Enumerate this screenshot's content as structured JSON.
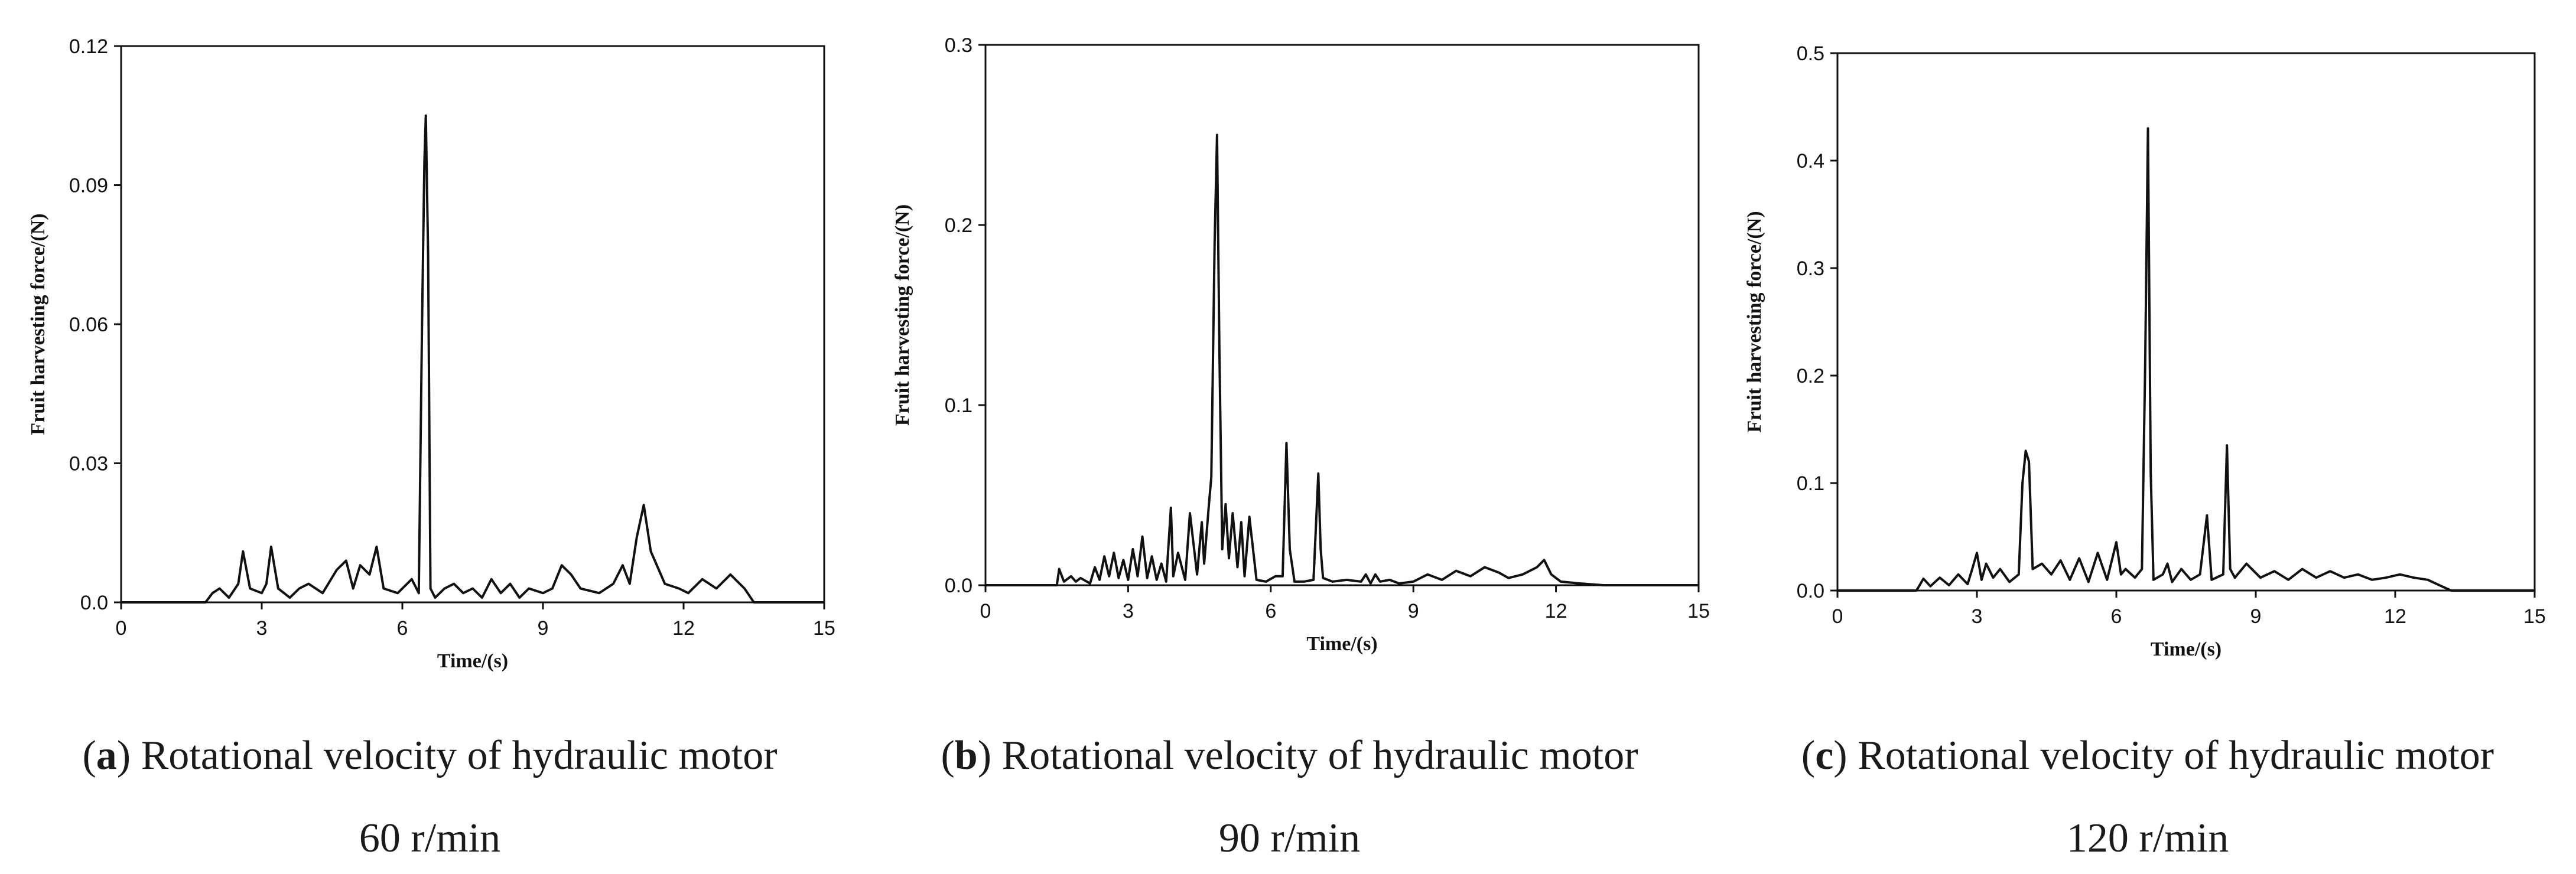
{
  "chart_data": [
    {
      "type": "line",
      "xlabel": "Time/(s)",
      "ylabel": "Fruit harvesting force/(N)",
      "xlim": [
        0,
        15
      ],
      "ylim": [
        0,
        0.12
      ],
      "xticks": [
        "0",
        "3",
        "6",
        "9",
        "12",
        "15"
      ],
      "yticks": [
        "0.0",
        "0.03",
        "0.06",
        "0.09",
        "0.12"
      ],
      "caption_letter": "a",
      "caption_text": " Rotational velocity of hydraulic motor",
      "caption_line2": "60 r/min",
      "series": [
        {
          "x": [
            0,
            1.8,
            1.95,
            2.1,
            2.3,
            2.5,
            2.6,
            2.75,
            3.0,
            3.1,
            3.2,
            3.35,
            3.6,
            3.8,
            4.0,
            4.3,
            4.6,
            4.8,
            4.95,
            5.1,
            5.3,
            5.45,
            5.6,
            5.9,
            6.2,
            6.35,
            6.42,
            6.47,
            6.5,
            6.55,
            6.6,
            6.7,
            6.9,
            7.1,
            7.3,
            7.5,
            7.7,
            7.9,
            8.1,
            8.3,
            8.5,
            8.7,
            9.0,
            9.2,
            9.4,
            9.6,
            9.8,
            10.2,
            10.5,
            10.7,
            10.85,
            11.0,
            11.15,
            11.3,
            11.6,
            11.9,
            12.1,
            12.4,
            12.7,
            13.0,
            13.3,
            13.5,
            14.0,
            15.0
          ],
          "y": [
            0,
            0,
            0.002,
            0.003,
            0.001,
            0.004,
            0.011,
            0.003,
            0.002,
            0.004,
            0.012,
            0.003,
            0.001,
            0.003,
            0.004,
            0.002,
            0.007,
            0.009,
            0.003,
            0.008,
            0.006,
            0.012,
            0.003,
            0.002,
            0.005,
            0.002,
            0.06,
            0.095,
            0.105,
            0.075,
            0.003,
            0.001,
            0.003,
            0.004,
            0.002,
            0.003,
            0.001,
            0.005,
            0.002,
            0.004,
            0.001,
            0.003,
            0.002,
            0.003,
            0.008,
            0.006,
            0.003,
            0.002,
            0.004,
            0.008,
            0.004,
            0.014,
            0.021,
            0.011,
            0.004,
            0.003,
            0.002,
            0.005,
            0.003,
            0.006,
            0.003,
            0,
            0,
            0
          ]
        }
      ]
    },
    {
      "type": "line",
      "xlabel": "Time/(s)",
      "ylabel": "Fruit harvesting force/(N)",
      "xlim": [
        0,
        15
      ],
      "ylim": [
        0,
        0.3
      ],
      "xticks": [
        "0",
        "3",
        "6",
        "9",
        "12",
        "15"
      ],
      "yticks": [
        "0.0",
        "0.1",
        "0.2",
        "0.3"
      ],
      "caption_letter": "b",
      "caption_text": " Rotational velocity of hydraulic motor",
      "caption_line2": "90 r/min",
      "series": [
        {
          "x": [
            0,
            1.5,
            1.55,
            1.65,
            1.8,
            1.9,
            2.0,
            2.2,
            2.3,
            2.4,
            2.5,
            2.6,
            2.7,
            2.8,
            2.9,
            3.0,
            3.1,
            3.2,
            3.3,
            3.4,
            3.5,
            3.6,
            3.7,
            3.8,
            3.9,
            3.95,
            4.05,
            4.2,
            4.3,
            4.45,
            4.55,
            4.6,
            4.7,
            4.75,
            4.82,
            4.87,
            4.92,
            4.98,
            5.05,
            5.12,
            5.2,
            5.3,
            5.38,
            5.45,
            5.55,
            5.7,
            5.9,
            6.1,
            6.25,
            6.33,
            6.4,
            6.5,
            6.7,
            6.9,
            7.0,
            7.05,
            7.1,
            7.3,
            7.6,
            7.9,
            8.0,
            8.1,
            8.2,
            8.3,
            8.5,
            8.7,
            9.0,
            9.3,
            9.6,
            9.9,
            10.2,
            10.5,
            10.8,
            11.0,
            11.3,
            11.6,
            11.75,
            11.9,
            12.1,
            12.5,
            13.0,
            15.0
          ],
          "y": [
            0,
            0,
            0.009,
            0.002,
            0.005,
            0.002,
            0.004,
            0.001,
            0.01,
            0.003,
            0.016,
            0.005,
            0.018,
            0.004,
            0.014,
            0.003,
            0.02,
            0.005,
            0.027,
            0.004,
            0.016,
            0.003,
            0.012,
            0.002,
            0.043,
            0.005,
            0.018,
            0.003,
            0.04,
            0.006,
            0.035,
            0.012,
            0.045,
            0.06,
            0.19,
            0.25,
            0.13,
            0.02,
            0.045,
            0.015,
            0.04,
            0.01,
            0.035,
            0.005,
            0.038,
            0.003,
            0.002,
            0.005,
            0.005,
            0.079,
            0.02,
            0.002,
            0.002,
            0.003,
            0.062,
            0.02,
            0.004,
            0.002,
            0.003,
            0.002,
            0.006,
            0.001,
            0.006,
            0.002,
            0.003,
            0.001,
            0.002,
            0.006,
            0.003,
            0.008,
            0.005,
            0.01,
            0.007,
            0.004,
            0.006,
            0.01,
            0.014,
            0.006,
            0.002,
            0.001,
            0,
            0
          ]
        }
      ]
    },
    {
      "type": "line",
      "xlabel": "Time/(s)",
      "ylabel": "Fruit harvesting force/(N)",
      "xlim": [
        0,
        15
      ],
      "ylim": [
        0,
        0.5
      ],
      "xticks": [
        "0",
        "3",
        "6",
        "9",
        "12",
        "15"
      ],
      "yticks": [
        "0.0",
        "0.1",
        "0.2",
        "0.3",
        "0.4",
        "0.5"
      ],
      "caption_letter": "c",
      "caption_text": " Rotational velocity of hydraulic motor",
      "caption_line2": "120 r/min",
      "series": [
        {
          "x": [
            0,
            1.7,
            1.85,
            2.0,
            2.2,
            2.4,
            2.6,
            2.8,
            2.9,
            3.0,
            3.1,
            3.2,
            3.35,
            3.5,
            3.7,
            3.9,
            3.98,
            4.05,
            4.12,
            4.2,
            4.4,
            4.6,
            4.8,
            5.0,
            5.2,
            5.4,
            5.6,
            5.8,
            6.0,
            6.1,
            6.2,
            6.4,
            6.55,
            6.62,
            6.68,
            6.74,
            6.8,
            7.0,
            7.1,
            7.2,
            7.4,
            7.6,
            7.8,
            7.95,
            8.05,
            8.15,
            8.3,
            8.38,
            8.45,
            8.55,
            8.8,
            9.1,
            9.4,
            9.7,
            10.0,
            10.3,
            10.6,
            10.9,
            11.2,
            11.5,
            11.8,
            12.1,
            12.4,
            12.7,
            12.95,
            13.2,
            15.0
          ],
          "y": [
            0,
            0,
            0.011,
            0.004,
            0.012,
            0.005,
            0.015,
            0.006,
            0.02,
            0.035,
            0.01,
            0.025,
            0.012,
            0.02,
            0.008,
            0.015,
            0.1,
            0.13,
            0.12,
            0.02,
            0.025,
            0.015,
            0.028,
            0.01,
            0.03,
            0.008,
            0.035,
            0.01,
            0.045,
            0.015,
            0.02,
            0.012,
            0.02,
            0.21,
            0.43,
            0.11,
            0.01,
            0.015,
            0.025,
            0.008,
            0.02,
            0.01,
            0.015,
            0.07,
            0.01,
            0.012,
            0.015,
            0.135,
            0.02,
            0.012,
            0.025,
            0.012,
            0.018,
            0.01,
            0.02,
            0.012,
            0.018,
            0.012,
            0.015,
            0.01,
            0.012,
            0.015,
            0.012,
            0.01,
            0.005,
            0,
            0
          ]
        }
      ]
    }
  ]
}
